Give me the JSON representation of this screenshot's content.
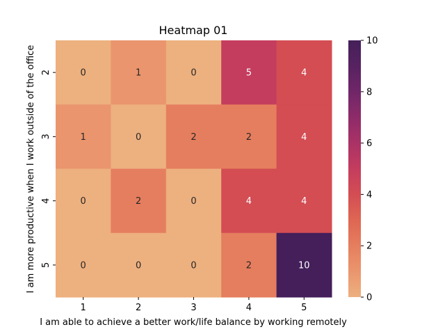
{
  "chart_data": {
    "type": "heatmap",
    "title": "Heatmap 01",
    "xlabel": "I am able to achieve a better work/life balance by working remotely",
    "ylabel": "I am more productive when I work outside of the office",
    "x_categories": [
      "1",
      "2",
      "3",
      "4",
      "5"
    ],
    "y_categories": [
      "2",
      "3",
      "4",
      "5"
    ],
    "values": [
      [
        0,
        1,
        0,
        5,
        4
      ],
      [
        1,
        0,
        2,
        2,
        4
      ],
      [
        0,
        2,
        0,
        4,
        4
      ],
      [
        0,
        0,
        0,
        2,
        10
      ]
    ],
    "colorbar": {
      "min": 0,
      "max": 10,
      "ticks": [
        "0",
        "2",
        "4",
        "6",
        "8",
        "10"
      ]
    },
    "colormap": "flare",
    "annotations": true
  }
}
